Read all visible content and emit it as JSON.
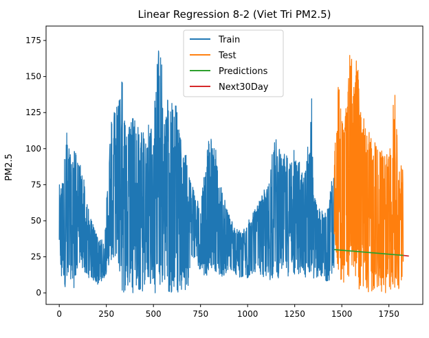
{
  "chart_data": {
    "type": "line",
    "title": "Linear Regression 8-2 (Viet Tri PM2.5)",
    "xlabel": "",
    "ylabel": "PM2.5",
    "xlim": [
      -70,
      1930
    ],
    "ylim": [
      -8,
      185
    ],
    "xticks": [
      0,
      250,
      500,
      750,
      1000,
      1250,
      1500,
      1750
    ],
    "yticks": [
      0,
      25,
      50,
      75,
      100,
      125,
      150,
      175
    ],
    "grid": false,
    "legend": "top-center",
    "series": [
      {
        "name": "Train",
        "color": "#1f77b4",
        "x_range": [
          0,
          1460
        ],
        "envelope": {
          "x": [
            0,
            15,
            40,
            60,
            80,
            100,
            130,
            160,
            200,
            240,
            270,
            300,
            330,
            345,
            355,
            380,
            420,
            460,
            500,
            530,
            540,
            548,
            560,
            580,
            620,
            650,
            680,
            700,
            730,
            750,
            780,
            800,
            830,
            845,
            870,
            900,
            940,
            970,
            1000,
            1050,
            1100,
            1150,
            1180,
            1230,
            1260,
            1300,
            1340,
            1350,
            1380,
            1420,
            1460
          ],
          "low": [
            20,
            5,
            3,
            10,
            2,
            20,
            15,
            10,
            5,
            10,
            20,
            25,
            0,
            0,
            1,
            0,
            0,
            0,
            0,
            0,
            0,
            0,
            0,
            0,
            0,
            0,
            0,
            25,
            20,
            15,
            10,
            18,
            15,
            12,
            10,
            15,
            12,
            8,
            10,
            15,
            8,
            10,
            10,
            12,
            8,
            10,
            8,
            10,
            10,
            8,
            10
          ],
          "high": [
            75,
            78,
            116,
            95,
            100,
            95,
            80,
            55,
            40,
            35,
            115,
            130,
            153,
            140,
            110,
            125,
            115,
            110,
            130,
            176,
            172,
            150,
            120,
            140,
            130,
            102,
            97,
            80,
            65,
            60,
            95,
            112,
            100,
            85,
            70,
            55,
            45,
            42,
            50,
            60,
            75,
            110,
            95,
            100,
            100,
            80,
            140,
            70,
            60,
            55,
            90
          ]
        }
      },
      {
        "name": "Test",
        "color": "#ff7f0e",
        "x_range": [
          1460,
          1826
        ],
        "envelope": {
          "x": [
            1460,
            1480,
            1500,
            1530,
            1545,
            1560,
            1580,
            1600,
            1650,
            1700,
            1750,
            1780,
            1800,
            1826
          ],
          "low": [
            40,
            15,
            5,
            5,
            8,
            15,
            5,
            0,
            0,
            0,
            0,
            0,
            0,
            0
          ],
          "high": [
            100,
            151,
            130,
            130,
            178,
            150,
            170,
            130,
            110,
            100,
            95,
            142,
            100,
            85
          ]
        }
      },
      {
        "name": "Predictions",
        "color": "#2ca02c",
        "x": [
          1460,
          1826
        ],
        "y": [
          30,
          26
        ]
      },
      {
        "name": "Next30Day",
        "color": "#d62728",
        "x": [
          1826,
          1856
        ],
        "y": [
          26,
          25.5
        ]
      }
    ]
  }
}
